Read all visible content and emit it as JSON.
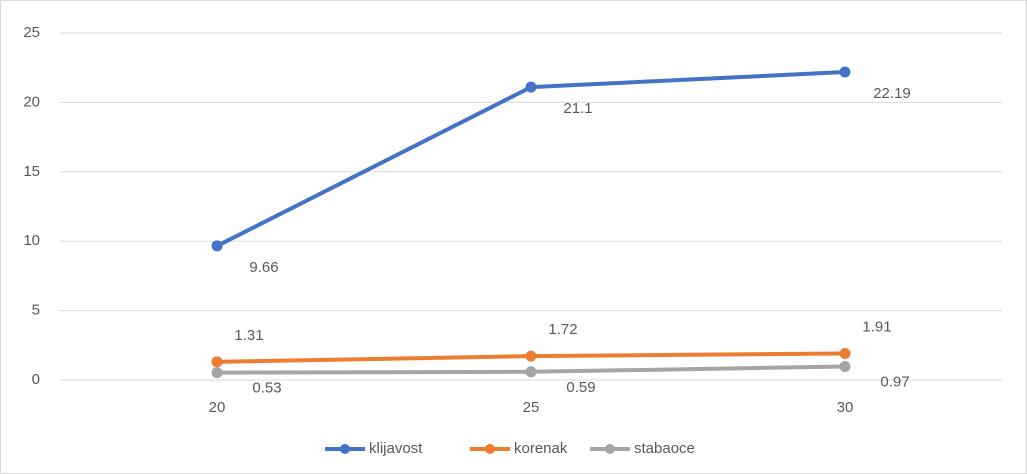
{
  "chart_data": {
    "type": "line",
    "categories": [
      "20",
      "25",
      "30"
    ],
    "series": [
      {
        "name": "klijavost",
        "color": "#4472c4",
        "values": [
          9.66,
          21.1,
          22.19
        ]
      },
      {
        "name": "korenak",
        "color": "#ed7d31",
        "values": [
          1.31,
          1.72,
          1.91
        ]
      },
      {
        "name": "stabaoce",
        "color": "#a5a5a5",
        "values": [
          0.53,
          0.59,
          0.97
        ]
      }
    ],
    "ylim": [
      0,
      25
    ],
    "yticks": [
      0,
      5,
      10,
      15,
      20,
      25
    ],
    "grid": true,
    "legend": "bottom"
  }
}
